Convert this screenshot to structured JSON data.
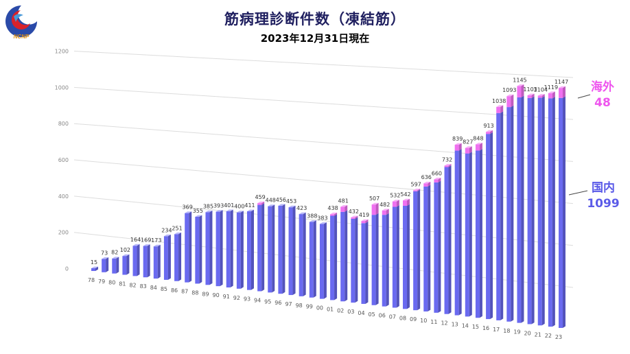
{
  "header": {
    "title": "筋病理診断件数（凍結筋）",
    "subtitle": "2023年12月31日現在",
    "logo_text": "NCNP"
  },
  "annotations": {
    "overseas_label": "海外",
    "overseas_value": "48",
    "domestic_label": "国内",
    "domestic_value": "1099"
  },
  "colors": {
    "domestic": "#6a6af0",
    "overseas": "#f070f0",
    "domestic_text": "#5b5be8",
    "overseas_text": "#ee55ee"
  },
  "chart_data": {
    "type": "bar",
    "stacked": true,
    "title": "筋病理診断件数（凍結筋）",
    "subtitle": "2023年12月31日現在",
    "xlabel": "",
    "ylabel": "",
    "ylim": [
      0,
      1200
    ],
    "yticks": [
      0,
      200,
      400,
      600,
      800,
      1000,
      1200
    ],
    "grid": true,
    "categories": [
      "78",
      "79",
      "80",
      "81",
      "82",
      "83",
      "84",
      "85",
      "86",
      "87",
      "88",
      "89",
      "90",
      "91",
      "92",
      "93",
      "94",
      "95",
      "96",
      "97",
      "98",
      "99",
      "00",
      "01",
      "02",
      "03",
      "04",
      "05",
      "06",
      "07",
      "08",
      "09",
      "10",
      "11",
      "12",
      "13",
      "14",
      "15",
      "16",
      "17",
      "18",
      "19",
      "20",
      "21",
      "22",
      "23"
    ],
    "totals": [
      15,
      73,
      82,
      102,
      164,
      169,
      173,
      234,
      251,
      369,
      355,
      385,
      393,
      401,
      400,
      411,
      459,
      448,
      456,
      453,
      423,
      388,
      383,
      438,
      481,
      432,
      419,
      507,
      482,
      532,
      542,
      597,
      636,
      660,
      732,
      839,
      827,
      848,
      913,
      1038,
      1093,
      1145,
      1103,
      1104,
      1119,
      1147
    ],
    "series": [
      {
        "name": "国内",
        "values": [
          15,
          73,
          82,
          102,
          164,
          169,
          173,
          234,
          251,
          369,
          355,
          385,
          393,
          401,
          400,
          411,
          450,
          448,
          456,
          453,
          423,
          388,
          383,
          430,
          455,
          425,
          408,
          455,
          460,
          505,
          515,
          592,
          620,
          645,
          725,
          810,
          800,
          818,
          903,
          1008,
          1040,
          1090,
          1090,
          1094,
          1094,
          1099
        ]
      },
      {
        "name": "海外",
        "values": [
          0,
          0,
          0,
          0,
          0,
          0,
          0,
          0,
          0,
          0,
          0,
          0,
          0,
          0,
          0,
          0,
          9,
          0,
          0,
          0,
          0,
          0,
          0,
          8,
          26,
          7,
          11,
          52,
          22,
          27,
          27,
          5,
          16,
          15,
          7,
          29,
          27,
          30,
          10,
          30,
          53,
          55,
          13,
          10,
          25,
          48
        ]
      }
    ]
  }
}
